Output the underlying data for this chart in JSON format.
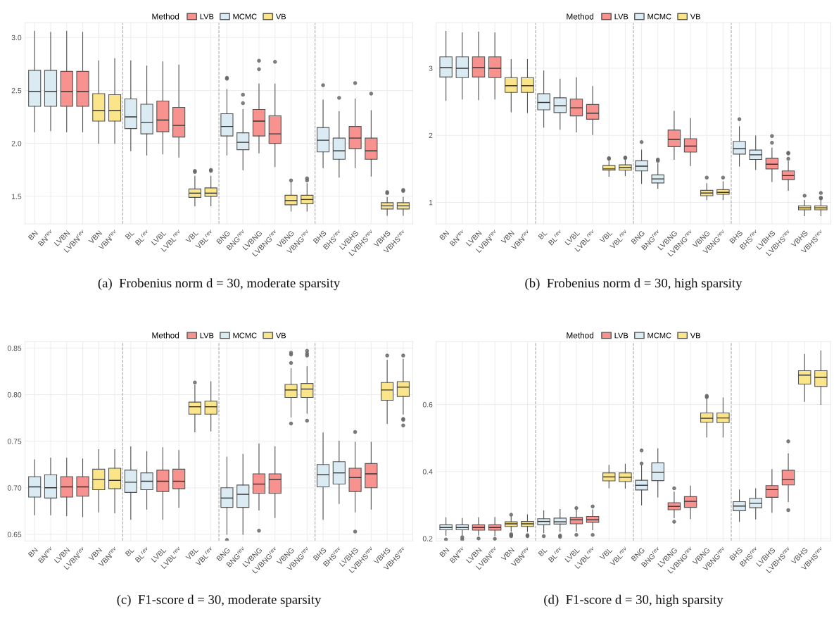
{
  "chart_data": [
    {
      "type": "box",
      "categories": [
        "BN",
        "BN$^{rev}$",
        "LVBN",
        "LVBN$^{rev}$",
        "VBN",
        "VBN$^{rev}$",
        "BL",
        "BL$^{rev}$",
        "LVBL",
        "LVBL$^{rev}$",
        "VBL",
        "VBL$^{rev}$",
        "BNG",
        "BNG$^{rev}$",
        "LVBNG",
        "LVBNG$^{rev}$",
        "VBNG",
        "VBNG$^{rev}$",
        "BHS",
        "BHS$^{rev}$",
        "LVBHS",
        "LVBHS$^{rev}$",
        "VBHS",
        "VBHS$^{rev}$"
      ],
      "ylim": [
        1.24,
        3.14
      ],
      "yticks": [
        1.5,
        {
          "value": 2.0,
          "label": "2.0"
        },
        2.5,
        {
          "value": 3.0,
          "label": "3.0"
        }
      ],
      "grid": true,
      "legend": "top",
      "legend_title": "Method",
      "annotations": [
        "(a)  Frobenius norm d = 30, moderate sparsity"
      ],
      "series": [
        {
          "name": "LVB",
          "color": "#f7928f",
          "boxes": [
            null,
            null,
            {
              "low": 2.11,
              "q1": 2.35,
              "median": 2.49,
              "q3": 2.68,
              "high": 3.06
            },
            {
              "low": 2.11,
              "q1": 2.35,
              "median": 2.49,
              "q3": 2.68,
              "high": 3.05
            },
            null,
            null,
            null,
            null,
            {
              "low": 1.9,
              "q1": 2.11,
              "median": 2.22,
              "q3": 2.4,
              "high": 2.77
            },
            {
              "low": 1.87,
              "q1": 2.06,
              "median": 2.17,
              "q3": 2.34,
              "high": 2.74
            },
            null,
            null,
            null,
            null,
            {
              "low": 1.91,
              "q1": 2.07,
              "median": 2.21,
              "q3": 2.32,
              "high": 2.56,
              "outliers": [
                2.7,
                2.78
              ]
            },
            {
              "low": 1.78,
              "q1": 2.0,
              "median": 2.09,
              "q3": 2.26,
              "high": 2.56,
              "outliers": [
                2.77
              ]
            },
            null,
            null,
            null,
            null,
            {
              "low": 1.77,
              "q1": 1.95,
              "median": 2.05,
              "q3": 2.16,
              "high": 2.42,
              "outliers": [
                2.57
              ]
            },
            {
              "low": 1.69,
              "q1": 1.85,
              "median": 1.93,
              "q3": 2.05,
              "high": 2.31,
              "outliers": [
                2.47
              ]
            },
            null,
            null
          ]
        },
        {
          "name": "MCMC",
          "color": "#daebf3",
          "boxes": [
            {
              "low": 2.11,
              "q1": 2.35,
              "median": 2.49,
              "q3": 2.69,
              "high": 3.06
            },
            {
              "low": 2.12,
              "q1": 2.35,
              "median": 2.49,
              "q3": 2.69,
              "high": 3.05
            },
            null,
            null,
            null,
            null,
            {
              "low": 1.93,
              "q1": 2.14,
              "median": 2.25,
              "q3": 2.42,
              "high": 2.78
            },
            {
              "low": 1.89,
              "q1": 2.09,
              "median": 2.2,
              "q3": 2.37,
              "high": 2.73
            },
            null,
            null,
            null,
            null,
            {
              "low": 1.89,
              "q1": 2.07,
              "median": 2.16,
              "q3": 2.28,
              "high": 2.51,
              "outliers": [
                2.61,
                2.62
              ]
            },
            {
              "low": 1.75,
              "q1": 1.94,
              "median": 2.01,
              "q3": 2.1,
              "high": 2.32,
              "outliers": [
                2.38,
                2.46
              ]
            },
            null,
            null,
            null,
            null,
            {
              "low": 1.77,
              "q1": 1.92,
              "median": 2.03,
              "q3": 2.15,
              "high": 2.41,
              "outliers": [
                2.55
              ]
            },
            {
              "low": 1.68,
              "q1": 1.85,
              "median": 1.93,
              "q3": 2.05,
              "high": 2.3,
              "outliers": [
                2.43
              ]
            },
            null,
            null,
            null,
            null
          ]
        },
        {
          "name": "VB",
          "color": "#fbe58a",
          "boxes": [
            null,
            null,
            null,
            null,
            {
              "low": 2.0,
              "q1": 2.21,
              "median": 2.31,
              "q3": 2.47,
              "high": 2.78
            },
            {
              "low": 2.0,
              "q1": 2.21,
              "median": 2.31,
              "q3": 2.46,
              "high": 2.8
            },
            null,
            null,
            null,
            null,
            {
              "low": 1.41,
              "q1": 1.49,
              "median": 1.53,
              "q3": 1.57,
              "high": 1.69,
              "outliers": [
                1.73,
                1.74
              ]
            },
            {
              "low": 1.41,
              "q1": 1.5,
              "median": 1.53,
              "q3": 1.58,
              "high": 1.69,
              "outliers": [
                1.74,
                1.75
              ]
            },
            null,
            null,
            null,
            null,
            {
              "low": 1.36,
              "q1": 1.42,
              "median": 1.46,
              "q3": 1.51,
              "high": 1.63,
              "outliers": [
                1.65
              ]
            },
            {
              "low": 1.36,
              "q1": 1.43,
              "median": 1.47,
              "q3": 1.51,
              "high": 1.62,
              "outliers": [
                1.65,
                1.67
              ]
            },
            null,
            null,
            null,
            null,
            {
              "low": 1.32,
              "q1": 1.38,
              "median": 1.41,
              "q3": 1.44,
              "high": 1.49,
              "outliers": [
                1.53,
                1.54
              ]
            },
            {
              "low": 1.32,
              "q1": 1.38,
              "median": 1.41,
              "q3": 1.44,
              "high": 1.49,
              "outliers": [
                1.55,
                1.56
              ]
            }
          ]
        }
      ]
    },
    {
      "type": "box",
      "categories": [
        "BN",
        "BN$^{rev}$",
        "LVBN",
        "LVBN$^{rev}$",
        "VBN",
        "VBN$^{rev}$",
        "BL",
        "BL$^{rev}$",
        "LVBL",
        "LVBL$^{rev}$",
        "VBL",
        "VBL$^{rev}$",
        "BNG",
        "BNG$^{rev}$",
        "LVBNG",
        "LVBNG$^{rev}$",
        "VBNG",
        "VBNG$^{rev}$",
        "BHS",
        "BHS$^{rev}$",
        "LVBHS",
        "LVBHS$^{rev}$",
        "VBHS",
        "VBHS$^{rev}$"
      ],
      "ylim": [
        0.68,
        3.68
      ],
      "yticks": [
        1,
        2,
        3
      ],
      "grid": true,
      "legend": "top",
      "legend_title": "Method",
      "annotations": [
        "(b)  Frobenius norm d = 30, high sparsity"
      ],
      "series": [
        {
          "name": "LVB",
          "color": "#f7928f",
          "boxes": [
            null,
            null,
            {
              "low": 2.53,
              "q1": 2.87,
              "median": 3.01,
              "q3": 3.17,
              "high": 3.54
            },
            {
              "low": 2.54,
              "q1": 2.86,
              "median": 3.0,
              "q3": 3.17,
              "high": 3.53
            },
            null,
            null,
            null,
            null,
            {
              "low": 2.05,
              "q1": 2.29,
              "median": 2.41,
              "q3": 2.54,
              "high": 2.86
            },
            {
              "low": 2.01,
              "q1": 2.24,
              "median": 2.33,
              "q3": 2.46,
              "high": 2.73
            },
            null,
            null,
            null,
            null,
            {
              "low": 1.64,
              "q1": 1.83,
              "median": 1.94,
              "q3": 2.08,
              "high": 2.36
            },
            {
              "low": 1.55,
              "q1": 1.75,
              "median": 1.84,
              "q3": 1.95,
              "high": 2.25
            },
            null,
            null,
            null,
            null,
            {
              "low": 1.31,
              "q1": 1.5,
              "median": 1.57,
              "q3": 1.66,
              "high": 1.81,
              "outliers": [
                1.89,
                1.99
              ]
            },
            {
              "low": 1.18,
              "q1": 1.34,
              "median": 1.4,
              "q3": 1.47,
              "high": 1.61,
              "outliers": [
                1.65,
                1.73,
                1.74
              ]
            },
            null,
            null
          ]
        },
        {
          "name": "MCMC",
          "color": "#daebf3",
          "boxes": [
            {
              "low": 2.52,
              "q1": 2.87,
              "median": 3.01,
              "q3": 3.17,
              "high": 3.55
            },
            {
              "low": 2.54,
              "q1": 2.86,
              "median": 3.0,
              "q3": 3.17,
              "high": 3.53
            },
            null,
            null,
            null,
            null,
            {
              "low": 2.12,
              "q1": 2.38,
              "median": 2.49,
              "q3": 2.62,
              "high": 2.96
            },
            {
              "low": 2.09,
              "q1": 2.34,
              "median": 2.44,
              "q3": 2.56,
              "high": 2.84
            },
            null,
            null,
            null,
            null,
            {
              "low": 1.28,
              "q1": 1.47,
              "median": 1.54,
              "q3": 1.62,
              "high": 1.78,
              "outliers": [
                1.9
              ]
            },
            {
              "low": 1.21,
              "q1": 1.29,
              "median": 1.35,
              "q3": 1.41,
              "high": 1.58,
              "outliers": [
                1.62,
                1.64
              ]
            },
            null,
            null,
            null,
            null,
            {
              "low": 1.54,
              "q1": 1.72,
              "median": 1.8,
              "q3": 1.91,
              "high": 2.13,
              "outliers": [
                2.24
              ]
            },
            {
              "low": 1.49,
              "q1": 1.64,
              "median": 1.71,
              "q3": 1.78,
              "high": 1.99
            },
            null,
            null,
            null,
            null
          ]
        },
        {
          "name": "VB",
          "color": "#fbe58a",
          "boxes": [
            null,
            null,
            null,
            null,
            {
              "low": 2.35,
              "q1": 2.64,
              "median": 2.74,
              "q3": 2.86,
              "high": 3.13
            },
            {
              "low": 2.34,
              "q1": 2.64,
              "median": 2.74,
              "q3": 2.86,
              "high": 3.13
            },
            null,
            null,
            null,
            null,
            {
              "low": 1.39,
              "q1": 1.48,
              "median": 1.5,
              "q3": 1.55,
              "high": 1.62,
              "outliers": [
                1.65,
                1.66
              ]
            },
            {
              "low": 1.4,
              "q1": 1.48,
              "median": 1.52,
              "q3": 1.56,
              "high": 1.64,
              "outliers": [
                1.66,
                1.67
              ]
            },
            null,
            null,
            null,
            null,
            {
              "low": 1.04,
              "q1": 1.1,
              "median": 1.14,
              "q3": 1.18,
              "high": 1.28,
              "outliers": [
                1.37
              ]
            },
            {
              "low": 1.04,
              "q1": 1.12,
              "median": 1.15,
              "q3": 1.19,
              "high": 1.31,
              "outliers": [
                1.37
              ]
            },
            null,
            null,
            null,
            null,
            {
              "low": 0.8,
              "q1": 0.89,
              "median": 0.92,
              "q3": 0.95,
              "high": 1.03,
              "outliers": [
                1.1
              ]
            },
            {
              "low": 0.8,
              "q1": 0.89,
              "median": 0.92,
              "q3": 0.95,
              "high": 1.05,
              "outliers": [
                1.06,
                1.07,
                1.14
              ]
            }
          ]
        }
      ]
    },
    {
      "type": "box",
      "categories": [
        "BN",
        "BN$^{rev}$",
        "LVBN",
        "LVBN$^{rev}$",
        "VBN",
        "VBN$^{rev}$",
        "BL",
        "BL$^{rev}$",
        "LVBL",
        "LVBL$^{rev}$",
        "VBL",
        "VBL$^{rev}$",
        "BNG",
        "BNG$^{rev}$",
        "LVBNG",
        "LVBNG$^{rev}$",
        "VBNG",
        "VBNG$^{rev}$",
        "BHS",
        "BHS$^{rev}$",
        "LVBHS",
        "LVBHS$^{rev}$",
        "VBHS",
        "VBHS$^{rev}$"
      ],
      "ylim": [
        0.643,
        0.857
      ],
      "yticks": [
        0.65,
        {
          "value": 0.7,
          "label": "0.70"
        },
        0.75,
        {
          "value": 0.8,
          "label": "0.80"
        },
        0.85
      ],
      "grid": true,
      "legend": "top",
      "legend_title": "Method",
      "annotations": [
        "(c)  F1-score d = 30, moderate sparsity"
      ],
      "series": [
        {
          "name": "LVB",
          "color": "#f7928f",
          "boxes": [
            null,
            null,
            {
              "low": 0.67,
              "q1": 0.69,
              "median": 0.701,
              "q3": 0.712,
              "high": 0.732
            },
            {
              "low": 0.669,
              "q1": 0.691,
              "median": 0.701,
              "q3": 0.712,
              "high": 0.731
            },
            null,
            null,
            null,
            null,
            {
              "low": 0.666,
              "q1": 0.696,
              "median": 0.707,
              "q3": 0.719,
              "high": 0.743
            },
            {
              "low": 0.679,
              "q1": 0.699,
              "median": 0.707,
              "q3": 0.72,
              "high": 0.74
            },
            null,
            null,
            null,
            null,
            {
              "low": 0.676,
              "q1": 0.694,
              "median": 0.704,
              "q3": 0.715,
              "high": 0.747,
              "outliers": [
                0.654
              ]
            },
            {
              "low": 0.668,
              "q1": 0.694,
              "median": 0.709,
              "q3": 0.715,
              "high": 0.744
            },
            null,
            null,
            null,
            null,
            {
              "low": 0.674,
              "q1": 0.696,
              "median": 0.711,
              "q3": 0.721,
              "high": 0.749,
              "outliers": [
                0.653,
                0.76
              ]
            },
            {
              "low": 0.677,
              "q1": 0.7,
              "median": 0.715,
              "q3": 0.726,
              "high": 0.749
            },
            null,
            null
          ]
        },
        {
          "name": "MCMC",
          "color": "#daebf3",
          "boxes": [
            {
              "low": 0.671,
              "q1": 0.69,
              "median": 0.701,
              "q3": 0.712,
              "high": 0.73
            },
            {
              "low": 0.671,
              "q1": 0.689,
              "median": 0.7,
              "q3": 0.714,
              "high": 0.732
            },
            null,
            null,
            null,
            null,
            {
              "low": 0.666,
              "q1": 0.695,
              "median": 0.706,
              "q3": 0.719,
              "high": 0.744
            },
            {
              "low": 0.677,
              "q1": 0.698,
              "median": 0.707,
              "q3": 0.716,
              "high": 0.739
            },
            null,
            null,
            null,
            null,
            {
              "low": 0.65,
              "q1": 0.679,
              "median": 0.689,
              "q3": 0.7,
              "high": 0.733,
              "outliers": [
                0.644
              ]
            },
            {
              "low": 0.65,
              "q1": 0.679,
              "median": 0.693,
              "q3": 0.703,
              "high": 0.736
            },
            null,
            null,
            null,
            null,
            {
              "low": 0.666,
              "q1": 0.701,
              "median": 0.714,
              "q3": 0.725,
              "high": 0.759
            },
            {
              "low": 0.683,
              "q1": 0.704,
              "median": 0.716,
              "q3": 0.728,
              "high": 0.75
            },
            null,
            null,
            null,
            null
          ]
        },
        {
          "name": "VB",
          "color": "#fbe58a",
          "boxes": [
            null,
            null,
            null,
            null,
            {
              "low": 0.674,
              "q1": 0.698,
              "median": 0.709,
              "q3": 0.72,
              "high": 0.741
            },
            {
              "low": 0.673,
              "q1": 0.699,
              "median": 0.708,
              "q3": 0.721,
              "high": 0.741
            },
            null,
            null,
            null,
            null,
            {
              "low": 0.76,
              "q1": 0.779,
              "median": 0.787,
              "q3": 0.792,
              "high": 0.81,
              "outliers": [
                0.813
              ]
            },
            {
              "low": 0.761,
              "q1": 0.779,
              "median": 0.787,
              "q3": 0.793,
              "high": 0.814
            },
            null,
            null,
            null,
            null,
            {
              "low": 0.776,
              "q1": 0.797,
              "median": 0.805,
              "q3": 0.811,
              "high": 0.828,
              "outliers": [
                0.769,
                0.834,
                0.843,
                0.845
              ]
            },
            {
              "low": 0.78,
              "q1": 0.797,
              "median": 0.806,
              "q3": 0.812,
              "high": 0.83,
              "outliers": [
                0.772,
                0.842,
                0.844,
                0.847
              ]
            },
            null,
            null,
            null,
            null,
            {
              "low": 0.769,
              "q1": 0.794,
              "median": 0.805,
              "q3": 0.813,
              "high": 0.837,
              "outliers": [
                0.842
              ]
            },
            {
              "low": 0.779,
              "q1": 0.798,
              "median": 0.808,
              "q3": 0.814,
              "high": 0.838,
              "outliers": [
                0.767,
                0.773,
                0.774,
                0.842
              ]
            }
          ]
        }
      ]
    },
    {
      "type": "box",
      "categories": [
        "BN",
        "BN$^{rev}$",
        "LVBN",
        "LVBN$^{rev}$",
        "VBN",
        "VBN$^{rev}$",
        "BL",
        "BL$^{rev}$",
        "LVBL",
        "LVBL$^{rev}$",
        "VBL",
        "VBL$^{rev}$",
        "BNG",
        "BNG$^{rev}$",
        "LVBNG",
        "LVBNG$^{rev}$",
        "VBNG",
        "VBNG$^{rev}$",
        "BHS",
        "BHS$^{rev}$",
        "LVBHS",
        "LVBHS$^{rev}$",
        "VBHS",
        "VBHS$^{rev}$"
      ],
      "ylim": [
        0.193,
        0.788
      ],
      "yticks": [
        0.2,
        0.4,
        0.6
      ],
      "grid": true,
      "legend": "top",
      "legend_title": "Method",
      "annotations": [
        "(d)  F1-score d = 30, high sparsity"
      ],
      "series": [
        {
          "name": "LVB",
          "color": "#f7928f",
          "boxes": [
            null,
            null,
            {
              "low": 0.21,
              "q1": 0.225,
              "median": 0.233,
              "q3": 0.241,
              "high": 0.262,
              "outliers": [
                0.2
              ]
            },
            {
              "low": 0.209,
              "q1": 0.225,
              "median": 0.233,
              "q3": 0.241,
              "high": 0.263,
              "outliers": [
                0.199
              ]
            },
            null,
            null,
            null,
            null,
            {
              "low": 0.222,
              "q1": 0.244,
              "median": 0.256,
              "q3": 0.263,
              "high": 0.289,
              "outliers": [
                0.211,
                0.291
              ]
            },
            {
              "low": 0.226,
              "q1": 0.248,
              "median": 0.256,
              "q3": 0.266,
              "high": 0.286,
              "outliers": [
                0.211,
                0.296
              ]
            },
            null,
            null,
            null,
            null,
            {
              "low": 0.262,
              "q1": 0.286,
              "median": 0.296,
              "q3": 0.307,
              "high": 0.339,
              "outliers": [
                0.25,
                0.35
              ]
            },
            {
              "low": 0.259,
              "q1": 0.293,
              "median": 0.311,
              "q3": 0.325,
              "high": 0.357
            },
            null,
            null,
            null,
            null,
            {
              "low": 0.278,
              "q1": 0.323,
              "median": 0.346,
              "q3": 0.358,
              "high": 0.406
            },
            {
              "low": 0.31,
              "q1": 0.36,
              "median": 0.376,
              "q3": 0.404,
              "high": 0.453,
              "outliers": [
                0.285,
                0.49
              ]
            },
            null,
            null
          ]
        },
        {
          "name": "MCMC",
          "color": "#daebf3",
          "boxes": [
            {
              "low": 0.21,
              "q1": 0.226,
              "median": 0.233,
              "q3": 0.241,
              "high": 0.262,
              "outliers": [
                0.197
              ]
            },
            {
              "low": 0.21,
              "q1": 0.226,
              "median": 0.233,
              "q3": 0.241,
              "high": 0.26,
              "outliers": [
                0.197,
                0.204
              ]
            },
            null,
            null,
            null,
            null,
            {
              "low": 0.218,
              "q1": 0.241,
              "median": 0.251,
              "q3": 0.259,
              "high": 0.283,
              "outliers": [
                0.207
              ]
            },
            {
              "low": 0.221,
              "q1": 0.243,
              "median": 0.25,
              "q3": 0.261,
              "high": 0.287,
              "outliers": [
                0.205,
                0.209
              ]
            },
            null,
            null,
            null,
            null,
            {
              "low": 0.3,
              "q1": 0.345,
              "median": 0.359,
              "q3": 0.374,
              "high": 0.418,
              "outliers": [
                0.424,
                0.463
              ]
            },
            {
              "low": 0.324,
              "q1": 0.373,
              "median": 0.398,
              "q3": 0.426,
              "high": 0.468
            },
            null,
            null,
            null,
            null,
            {
              "low": 0.251,
              "q1": 0.283,
              "median": 0.297,
              "q3": 0.31,
              "high": 0.345
            },
            {
              "low": 0.258,
              "q1": 0.292,
              "median": 0.305,
              "q3": 0.32,
              "high": 0.349
            },
            null,
            null,
            null,
            null
          ]
        },
        {
          "name": "VB",
          "color": "#fbe58a",
          "boxes": [
            null,
            null,
            null,
            null,
            {
              "low": 0.222,
              "q1": 0.236,
              "median": 0.244,
              "q3": 0.25,
              "high": 0.266,
              "outliers": [
                0.207,
                0.21,
                0.213,
                0.271
              ]
            },
            {
              "low": 0.221,
              "q1": 0.236,
              "median": 0.244,
              "q3": 0.251,
              "high": 0.271,
              "outliers": [
                0.207,
                0.21
              ]
            },
            null,
            null,
            null,
            null,
            {
              "low": 0.351,
              "q1": 0.372,
              "median": 0.384,
              "q3": 0.396,
              "high": 0.419
            },
            {
              "low": 0.35,
              "q1": 0.37,
              "median": 0.383,
              "q3": 0.396,
              "high": 0.422
            },
            null,
            null,
            null,
            null,
            {
              "low": 0.503,
              "q1": 0.547,
              "median": 0.559,
              "q3": 0.575,
              "high": 0.617,
              "outliers": [
                0.622,
                0.626
              ]
            },
            {
              "low": 0.503,
              "q1": 0.546,
              "median": 0.56,
              "q3": 0.575,
              "high": 0.62
            },
            null,
            null,
            null,
            null,
            {
              "low": 0.609,
              "q1": 0.661,
              "median": 0.688,
              "q3": 0.701,
              "high": 0.75
            },
            {
              "low": 0.6,
              "q1": 0.654,
              "median": 0.681,
              "q3": 0.701,
              "high": 0.76
            }
          ]
        }
      ]
    }
  ]
}
